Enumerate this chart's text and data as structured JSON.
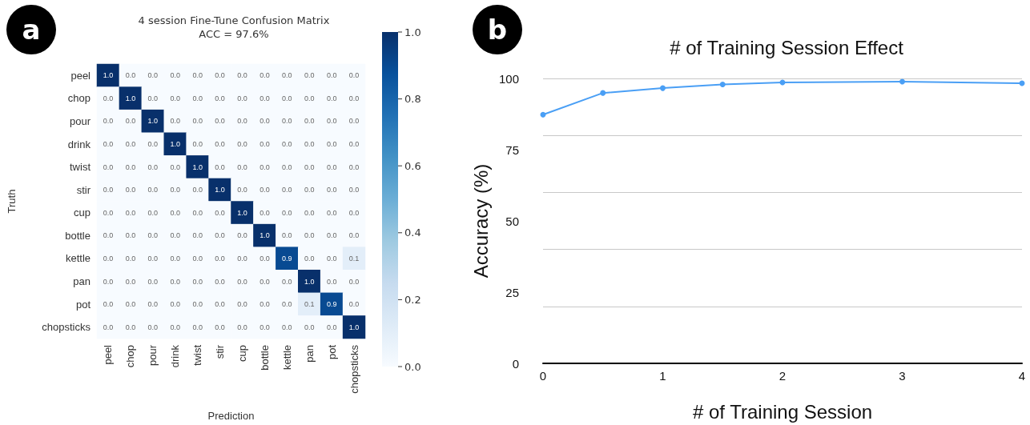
{
  "chart_data": [
    {
      "type": "heatmap",
      "title": "4 session Fine-Tune Confusion Matrix\nACC = 97.6%",
      "xlabel": "Prediction",
      "ylabel": "Truth",
      "annotations": [
        "a"
      ],
      "categories": [
        "peel",
        "chop",
        "pour",
        "drink",
        "twist",
        "stir",
        "cup",
        "bottle",
        "kettle",
        "pan",
        "pot",
        "chopsticks"
      ],
      "y_categories": [
        "peel",
        "chop",
        "pour",
        "drink",
        "twist",
        "stir",
        "cup",
        "bottle",
        "kettle",
        "pan",
        "pot",
        "chopsticks"
      ],
      "cells": [
        [
          1.0,
          0,
          0,
          0,
          0,
          0,
          0,
          0,
          0,
          0,
          0,
          0
        ],
        [
          0,
          1.0,
          0,
          0,
          0,
          0,
          0,
          0,
          0,
          0,
          0,
          0
        ],
        [
          0,
          0,
          1.0,
          0,
          0,
          0,
          0,
          0,
          0,
          0,
          0,
          0
        ],
        [
          0,
          0,
          0,
          1.0,
          0,
          0,
          0,
          0,
          0,
          0,
          0,
          0
        ],
        [
          0,
          0,
          0,
          0,
          1.0,
          0,
          0,
          0,
          0,
          0,
          0,
          0
        ],
        [
          0,
          0,
          0,
          0,
          0,
          1.0,
          0,
          0,
          0,
          0,
          0,
          0
        ],
        [
          0,
          0,
          0,
          0,
          0,
          0,
          1.0,
          0,
          0,
          0,
          0,
          0
        ],
        [
          0,
          0,
          0,
          0,
          0,
          0,
          0,
          1.0,
          0,
          0,
          0,
          0
        ],
        [
          0,
          0,
          0,
          0,
          0,
          0,
          0,
          0,
          0.9,
          0,
          0,
          0.1
        ],
        [
          0,
          0,
          0,
          0,
          0,
          0,
          0,
          0,
          0,
          1.0,
          0,
          0
        ],
        [
          0,
          0,
          0,
          0,
          0,
          0,
          0,
          0,
          0,
          0.1,
          0.9,
          0
        ],
        [
          0,
          0,
          0,
          0,
          0,
          0,
          0,
          0,
          0,
          0,
          0,
          1.0
        ]
      ],
      "cell_labels": [
        [
          "1.0",
          "0.0",
          "0.0",
          "0.0",
          "0.0",
          "0.0",
          "0.0",
          "0.0",
          "0.0",
          "0.0",
          "0.0",
          "0.0"
        ],
        [
          "0.0",
          "1.0",
          "0.0",
          "0.0",
          "0.0",
          "0.0",
          "0.0",
          "0.0",
          "0.0",
          "0.0",
          "0.0",
          "0.0"
        ],
        [
          "0.0",
          "0.0",
          "1.0",
          "0.0",
          "0.0",
          "0.0",
          "0.0",
          "0.0",
          "0.0",
          "0.0",
          "0.0",
          "0.0"
        ],
        [
          "0.0",
          "0.0",
          "0.0",
          "1.0",
          "0.0",
          "0.0",
          "0.0",
          "0.0",
          "0.0",
          "0.0",
          "0.0",
          "0.0"
        ],
        [
          "0.0",
          "0.0",
          "0.0",
          "0.0",
          "1.0",
          "0.0",
          "0.0",
          "0.0",
          "0.0",
          "0.0",
          "0.0",
          "0.0"
        ],
        [
          "0.0",
          "0.0",
          "0.0",
          "0.0",
          "0.0",
          "1.0",
          "0.0",
          "0.0",
          "0.0",
          "0.0",
          "0.0",
          "0.0"
        ],
        [
          "0.0",
          "0.0",
          "0.0",
          "0.0",
          "0.0",
          "0.0",
          "1.0",
          "0.0",
          "0.0",
          "0.0",
          "0.0",
          "0.0"
        ],
        [
          "0.0",
          "0.0",
          "0.0",
          "0.0",
          "0.0",
          "0.0",
          "0.0",
          "1.0",
          "0.0",
          "0.0",
          "0.0",
          "0.0"
        ],
        [
          "0.0",
          "0.0",
          "0.0",
          "0.0",
          "0.0",
          "0.0",
          "0.0",
          "0.0",
          "0.9",
          "0.0",
          "0.0",
          "0.1"
        ],
        [
          "0.0",
          "0.0",
          "0.0",
          "0.0",
          "0.0",
          "0.0",
          "0.0",
          "0.0",
          "0.0",
          "1.0",
          "0.0",
          "0.0"
        ],
        [
          "0.0",
          "0.0",
          "0.0",
          "0.0",
          "0.0",
          "0.0",
          "0.0",
          "0.0",
          "0.0",
          "0.1",
          "0.9",
          "0.0"
        ],
        [
          "0.0",
          "0.0",
          "0.0",
          "0.0",
          "0.0",
          "0.0",
          "0.0",
          "0.0",
          "0.0",
          "0.0",
          "0.0",
          "1.0"
        ]
      ],
      "clim": [
        0,
        1
      ],
      "cticks": [
        {
          "value": 0,
          "label": "0.0"
        },
        {
          "value": 0.2,
          "label": "0.2"
        },
        {
          "value": 0.4,
          "label": "0.4"
        },
        {
          "value": 0.6,
          "label": "0.6"
        },
        {
          "value": 0.8,
          "label": "0.8"
        },
        {
          "value": 1,
          "label": "1.0"
        }
      ]
    },
    {
      "type": "line",
      "title": "# of Training Session Effect",
      "xlabel": "# of Training Session",
      "ylabel": "Accuracy (%)",
      "annotations": [
        "b"
      ],
      "x": [
        0,
        0.5,
        1,
        1.5,
        2,
        3,
        4
      ],
      "series": [
        {
          "color": "#4a9ff5",
          "values": [
            87.3,
            94.9,
            96.6,
            97.9,
            98.6,
            98.9,
            98.3
          ]
        }
      ],
      "xlim": [
        0,
        4
      ],
      "xticks": [
        0,
        1,
        2,
        3,
        4
      ],
      "ylim": [
        0,
        100
      ],
      "yticks": [
        0,
        25,
        50,
        75,
        100
      ],
      "grid": "y",
      "marker": "circle",
      "line_style": "solid"
    }
  ]
}
